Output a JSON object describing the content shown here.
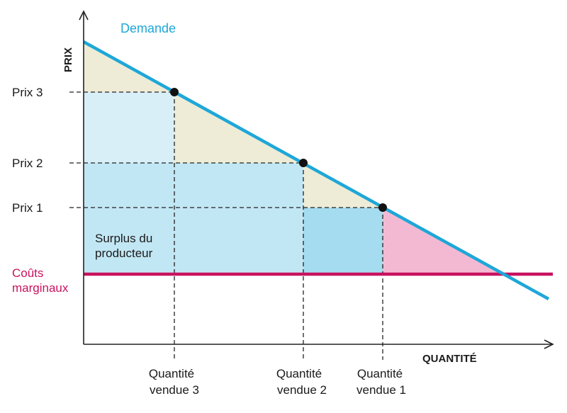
{
  "axes": {
    "y_title": "PRIX",
    "x_title": "QUANTITÉ"
  },
  "curves": {
    "demand_label": "Demande",
    "marginal_cost_label_line1": "Coûts",
    "marginal_cost_label_line2": "marginaux"
  },
  "prices": [
    {
      "label": "Prix 3"
    },
    {
      "label": "Prix 2"
    },
    {
      "label": "Prix 1"
    }
  ],
  "quantities": [
    {
      "line1": "Quantité",
      "line2": "vendue 3"
    },
    {
      "line1": "Quantité",
      "line2": "vendue 2"
    },
    {
      "line1": "Quantité",
      "line2": "vendue 1"
    }
  ],
  "regions": {
    "producer_surplus_line1": "Surplus du",
    "producer_surplus_line2": "producteur"
  },
  "colors": {
    "demand": "#1ea7d8",
    "marginal_cost": "#c8125f",
    "consumer_area": "#eeecd6",
    "surplus_light": "#d8eff8",
    "surplus_mid": "#c2e7f4",
    "surplus_dark": "#a6dcef",
    "deadweight": "#f4b9d2"
  }
}
